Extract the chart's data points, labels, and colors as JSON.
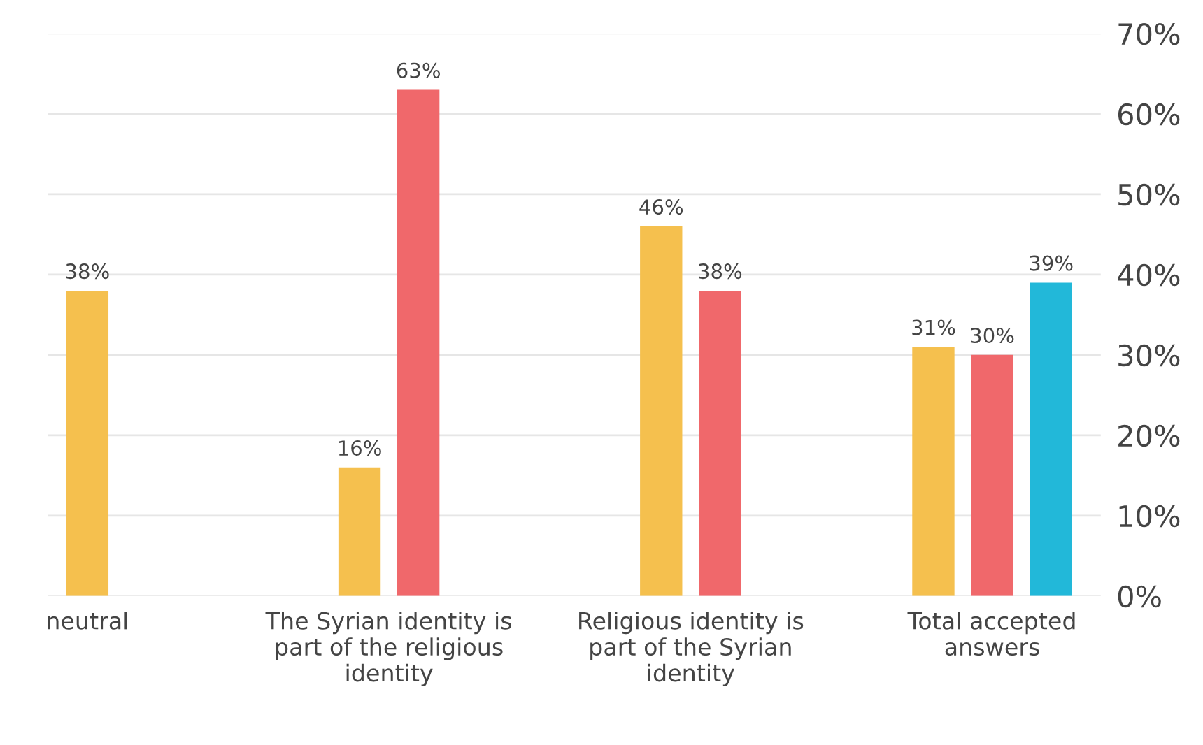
{
  "chart_data": {
    "type": "bar",
    "categories": [
      "neutral",
      "The Syrian identity is part of the religious identity",
      "Religious identity is part of the Syrian identity",
      "Total accepted answers"
    ],
    "series": [
      {
        "color": "#f5c04e",
        "values": [
          38,
          16,
          46,
          31
        ],
        "value_labels": [
          "38%",
          "16%",
          "46%",
          "31%"
        ]
      },
      {
        "color": "#f0686b",
        "values": [
          null,
          63,
          38,
          30
        ],
        "value_labels": [
          null,
          "63%",
          "38%",
          "30%"
        ]
      },
      {
        "color": "#22b8d9",
        "values": [
          null,
          null,
          null,
          39
        ],
        "value_labels": [
          null,
          null,
          null,
          "39%"
        ]
      }
    ],
    "ylim": [
      0,
      70
    ],
    "yticks": [
      {
        "value": 0,
        "label": "0%"
      },
      {
        "value": 10,
        "label": "10%"
      },
      {
        "value": 20,
        "label": "20%"
      },
      {
        "value": 30,
        "label": "30%"
      },
      {
        "value": 40,
        "label": "40%"
      },
      {
        "value": 50,
        "label": "50%"
      },
      {
        "value": 60,
        "label": "60%"
      },
      {
        "value": 70,
        "label": "70%"
      }
    ],
    "grid": "y"
  }
}
